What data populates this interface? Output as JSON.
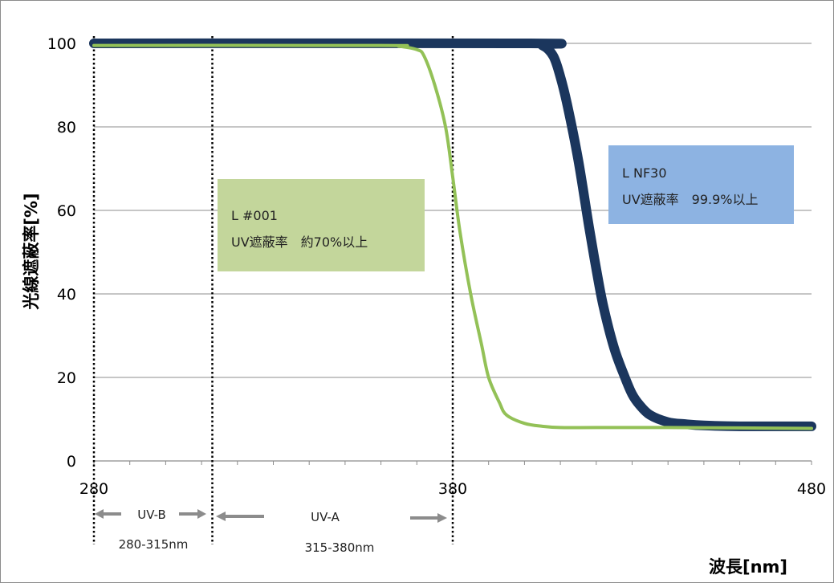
{
  "chart_data": {
    "type": "line",
    "xlabel": "波長[nm]",
    "ylabel": "光線遮蔽率[%]",
    "xlim": [
      280,
      480
    ],
    "ylim": [
      0,
      100
    ],
    "x_ticks": [
      "280",
      "380",
      "480"
    ],
    "y_ticks": [
      "0",
      "20",
      "40",
      "60",
      "80",
      "100"
    ],
    "grid": true,
    "series": [
      {
        "name": "L #001",
        "color": "#93c157",
        "x": [
          280,
          360,
          365,
          370,
          372,
          375,
          378,
          380,
          382,
          385,
          388,
          390,
          393,
          395,
          400,
          405,
          410,
          420,
          440,
          460,
          480
        ],
        "y": [
          99.5,
          99.5,
          99.3,
          98.5,
          97,
          90,
          80,
          68,
          55,
          40,
          28,
          20,
          14,
          11,
          9,
          8.3,
          8,
          8,
          8,
          7.9,
          7.8
        ]
      },
      {
        "name": "L NF30",
        "color": "#1b365d",
        "x": [
          280,
          400,
          405,
          408,
          410,
          412,
          415,
          418,
          420,
          422,
          425,
          428,
          430,
          432,
          435,
          440,
          445,
          450,
          460,
          480
        ],
        "y": [
          100,
          100,
          99.5,
          97,
          92,
          85,
          72,
          56,
          46,
          37,
          27,
          20,
          16,
          13.5,
          11,
          9.3,
          8.8,
          8.5,
          8.3,
          8.3
        ]
      }
    ],
    "bands": [
      {
        "label": "UV-B",
        "range": "280-315nm",
        "x1": 280,
        "x2": 313
      },
      {
        "label": "UV-A",
        "range": "315-380nm",
        "x1": 313,
        "x2": 380
      }
    ],
    "annotations": [
      {
        "name": "L #001",
        "line1": "L #001",
        "line2": "UV遮蔽率　約70%以上",
        "color": "#c3d69b"
      },
      {
        "name": "L NF30",
        "line1": "L NF30",
        "line2": "UV遮蔽率　99.9%以上",
        "color": "#8db3e2"
      }
    ]
  }
}
